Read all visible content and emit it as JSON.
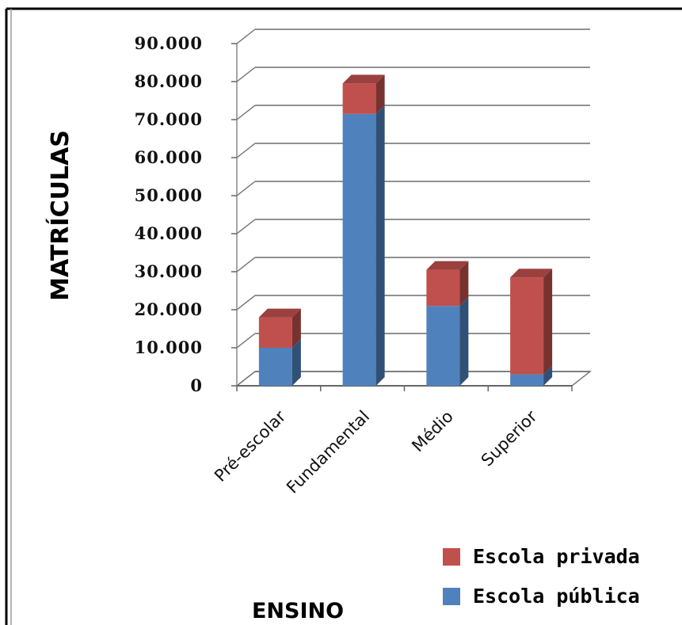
{
  "chart_data": {
    "type": "bar",
    "stacked": true,
    "three_d": true,
    "categories": [
      "Pré-escolar",
      "Fundamental",
      "Médio",
      "Superior"
    ],
    "series": [
      {
        "name": "Escola pública",
        "values": [
          10000,
          71500,
          21000,
          3000
        ]
      },
      {
        "name": "Escola privada",
        "values": [
          8000,
          8000,
          9500,
          25500
        ]
      }
    ],
    "ylabel": "MATRÍCULAS",
    "xlabel": "ENSINO",
    "ylim": [
      0,
      90000
    ],
    "yticks": [
      0,
      10000,
      20000,
      30000,
      40000,
      50000,
      60000,
      70000,
      80000,
      90000
    ],
    "ytick_labels": [
      "0",
      "10.000",
      "20.000",
      "30.000",
      "40.000",
      "50.000",
      "60.000",
      "70.000",
      "80.000",
      "90.000"
    ],
    "grid": true,
    "legend_position": "bottom-right"
  },
  "colors": {
    "Escola pública": "#4F81BD",
    "Escola privada": "#C0504D"
  }
}
